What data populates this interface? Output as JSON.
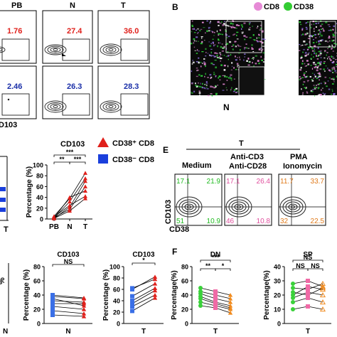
{
  "panel_labels": {
    "B": "B",
    "E": "E",
    "F": "F"
  },
  "panel_a": {
    "columns": [
      "PB",
      "N",
      "T"
    ],
    "row1_values": [
      "1.76",
      "27.4",
      "36.0"
    ],
    "row2_values": [
      "2.46",
      "26.3",
      "28.3"
    ],
    "axis_label_partial": "D103",
    "row1_color": "#e0201b",
    "row2_color": "#1a2fa8"
  },
  "panel_b": {
    "legend": [
      "CD8",
      "CD38"
    ],
    "legend_colors": [
      "#e68ad6",
      "#33cc33"
    ],
    "caption": "N"
  },
  "panel_c": {
    "title": "CD103",
    "ylabel": "Percentage (%)",
    "yticks": [
      "0",
      "20",
      "40",
      "60",
      "80",
      "100"
    ],
    "xticks": [
      "PB",
      "N",
      "T"
    ],
    "sig": [
      "**",
      "***",
      "***"
    ],
    "legend": {
      "red": "CD38⁺ CD8",
      "blue": "CD38⁻ CD8"
    },
    "left_fragment_x": "T"
  },
  "panel_e": {
    "group_title": "T",
    "conditions": [
      "Medium",
      "Anti-CD3\nAnti-CD28",
      "PMA\nIonomycin"
    ],
    "ylabel": "CD103",
    "xlabel": "CD38",
    "quadrants": [
      {
        "tl": "17.1",
        "tr": "21.9",
        "bl": "51",
        "br": "10.9",
        "color": "#22bb22"
      },
      {
        "tl": "17.1",
        "tr": "26.4",
        "bl": "46",
        "br": "10.8",
        "color": "#e0509e"
      },
      {
        "tl": "11.7",
        "tr": "33.7",
        "bl": "32",
        "br": "22.5",
        "color": "#e07a1a"
      }
    ]
  },
  "panel_d": {
    "plots": [
      {
        "title": "CD103",
        "xlabel": "N",
        "sig": "NS",
        "yticks": [
          "0",
          "20",
          "40",
          "60",
          "80"
        ]
      },
      {
        "title": "CD103",
        "xlabel": "T",
        "sig": "*",
        "yticks": [
          "0",
          "20",
          "40",
          "60",
          "80",
          "100"
        ]
      }
    ],
    "ylabel": "Percentage (%)",
    "left_fragment": {
      "ylabel": "%",
      "x": "N"
    }
  },
  "panel_f": {
    "plots": [
      {
        "title": "DN",
        "xlabel": "T",
        "sig": [
          "**",
          "*",
          "***"
        ],
        "yticks": [
          "0",
          "20",
          "40",
          "60",
          "80"
        ]
      },
      {
        "title": "SP",
        "xlabel": "T",
        "sig": [
          "NS",
          "NS",
          "NS"
        ],
        "yticks": [
          "0",
          "10",
          "20",
          "30",
          "40"
        ]
      }
    ],
    "ylabel": "Percentage(%)"
  },
  "chart_data": [
    {
      "type": "line",
      "title": "CD103",
      "ylabel": "Percentage (%)",
      "categories": [
        "PB",
        "N",
        "T"
      ],
      "ylim": [
        0,
        100
      ],
      "series": [
        {
          "values": [
            2,
            32,
            75
          ]
        },
        {
          "values": [
            1,
            22,
            70
          ]
        },
        {
          "values": [
            3,
            18,
            60
          ]
        },
        {
          "values": [
            5,
            38,
            85
          ]
        },
        {
          "values": [
            2,
            40,
            52
          ]
        },
        {
          "values": [
            4,
            25,
            42
          ]
        },
        {
          "values": [
            1,
            15,
            38
          ]
        }
      ]
    },
    {
      "type": "scatter",
      "title": "CD103",
      "xlabel": "N",
      "ylabel": "Percentage (%)",
      "ylim": [
        0,
        80
      ],
      "pairs": [
        [
          38,
          35
        ],
        [
          32,
          30
        ],
        [
          40,
          36
        ],
        [
          28,
          28
        ],
        [
          24,
          20
        ],
        [
          18,
          14
        ],
        [
          12,
          10
        ],
        [
          35,
          25
        ]
      ]
    },
    {
      "type": "scatter",
      "title": "CD103",
      "xlabel": "T",
      "ylabel": "Percentage (%)",
      "ylim": [
        0,
        100
      ],
      "pairs": [
        [
          60,
          82
        ],
        [
          48,
          70
        ],
        [
          40,
          62
        ],
        [
          35,
          58
        ],
        [
          30,
          50
        ],
        [
          22,
          45
        ],
        [
          62,
          78
        ]
      ]
    },
    {
      "type": "scatter",
      "title": "DN",
      "xlabel": "T",
      "ylabel": "Percentage(%)",
      "ylim": [
        0,
        80
      ],
      "triplets": [
        [
          50,
          45,
          40
        ],
        [
          45,
          40,
          35
        ],
        [
          42,
          35,
          30
        ],
        [
          38,
          30,
          25
        ],
        [
          35,
          28,
          22
        ],
        [
          30,
          25,
          20
        ],
        [
          25,
          22,
          15
        ]
      ]
    },
    {
      "type": "scatter",
      "title": "SP",
      "xlabel": "T",
      "ylabel": "Percentage(%)",
      "ylim": [
        0,
        40
      ],
      "triplets": [
        [
          28,
          30,
          26
        ],
        [
          25,
          24,
          28
        ],
        [
          22,
          20,
          25
        ],
        [
          20,
          26,
          24
        ],
        [
          18,
          22,
          20
        ],
        [
          15,
          18,
          15
        ],
        [
          10,
          12,
          10
        ]
      ]
    }
  ]
}
